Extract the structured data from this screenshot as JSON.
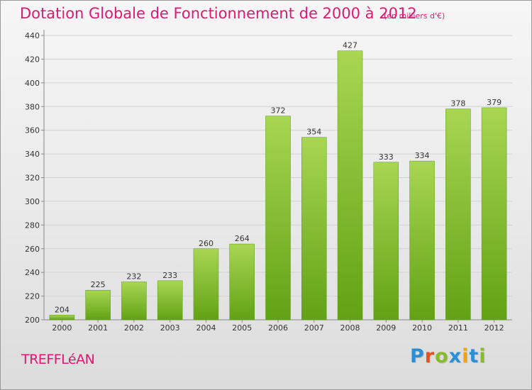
{
  "title": "Dotation Globale de Fonctionnement de 2000 à 2012",
  "subtitle": "(en milliers d'€)",
  "commune": "TREFFLéAN",
  "logo": {
    "text": "Proxiti",
    "colors": [
      "#2a8fd6",
      "#e8501a",
      "#86bb2c",
      "#2a8fd6",
      "#f3a30c",
      "#2a8fd6",
      "#86bb2c"
    ]
  },
  "chart_data": {
    "type": "bar",
    "title": "Dotation Globale de Fonctionnement de 2000 à 2012",
    "subtitle": "(en milliers d'€)",
    "xlabel": "",
    "ylabel": "",
    "categories": [
      "2000",
      "2001",
      "2002",
      "2003",
      "2004",
      "2005",
      "2006",
      "2007",
      "2008",
      "2009",
      "2010",
      "2011",
      "2012"
    ],
    "values": [
      204,
      225,
      232,
      233,
      260,
      264,
      372,
      354,
      427,
      333,
      334,
      378,
      379
    ],
    "ylim": [
      200,
      440
    ],
    "yticks": [
      200,
      220,
      240,
      260,
      280,
      300,
      320,
      340,
      360,
      380,
      400,
      420,
      440
    ],
    "grid": true,
    "bar_color": "#7fb82e",
    "bar_color_light": "#a3d24f",
    "label_color": "#333333",
    "title_color": "#dd1a70"
  }
}
